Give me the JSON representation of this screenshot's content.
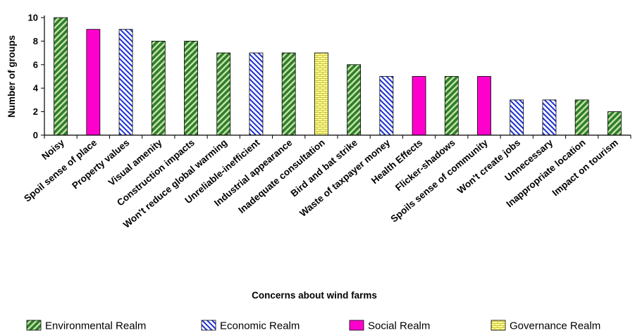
{
  "chart_data": {
    "type": "bar",
    "title": "",
    "xlabel": "Concerns about wind farms",
    "ylabel": "Number of groups",
    "ylim": [
      0,
      10
    ],
    "yticks": [
      0,
      2,
      4,
      6,
      8,
      10
    ],
    "grid": false,
    "legend_position": "bottom",
    "categories": [
      "Noisy",
      "Spoil sense of place",
      "Property values",
      "Visual amenity",
      "Construction impacts",
      "Won't reduce global warming",
      "Unreliable-inefficient",
      "Industrial appearance",
      "Inadequate consultation",
      "Bird and bat strike",
      "Waste of taxpayer money",
      "Health Effects",
      "Flicker-shadows",
      "Spoils sense of community",
      "Won't create jobs",
      "Unnecessary",
      "Inappropriate location",
      "Impact on tourism"
    ],
    "values": [
      10,
      9,
      9,
      8,
      8,
      7,
      7,
      7,
      7,
      6,
      5,
      5,
      5,
      5,
      3,
      3,
      3,
      2
    ],
    "realms": [
      "env",
      "soc",
      "eco",
      "env",
      "env",
      "env",
      "eco",
      "env",
      "gov",
      "env",
      "eco",
      "soc",
      "env",
      "soc",
      "eco",
      "eco",
      "env",
      "env"
    ],
    "legend": [
      {
        "key": "env",
        "label": "Environmental Realm",
        "color": "#2e7d32",
        "pattern": "diagonal-green"
      },
      {
        "key": "eco",
        "label": "Economic Realm",
        "color": "#1a2fd6",
        "pattern": "diagonal-blue"
      },
      {
        "key": "soc",
        "label": "Social Realm",
        "color": "#ff00cc",
        "pattern": "solid-magenta"
      },
      {
        "key": "gov",
        "label": "Governance  Realm",
        "color": "#ffff99",
        "pattern": "brick-yellow"
      }
    ]
  }
}
